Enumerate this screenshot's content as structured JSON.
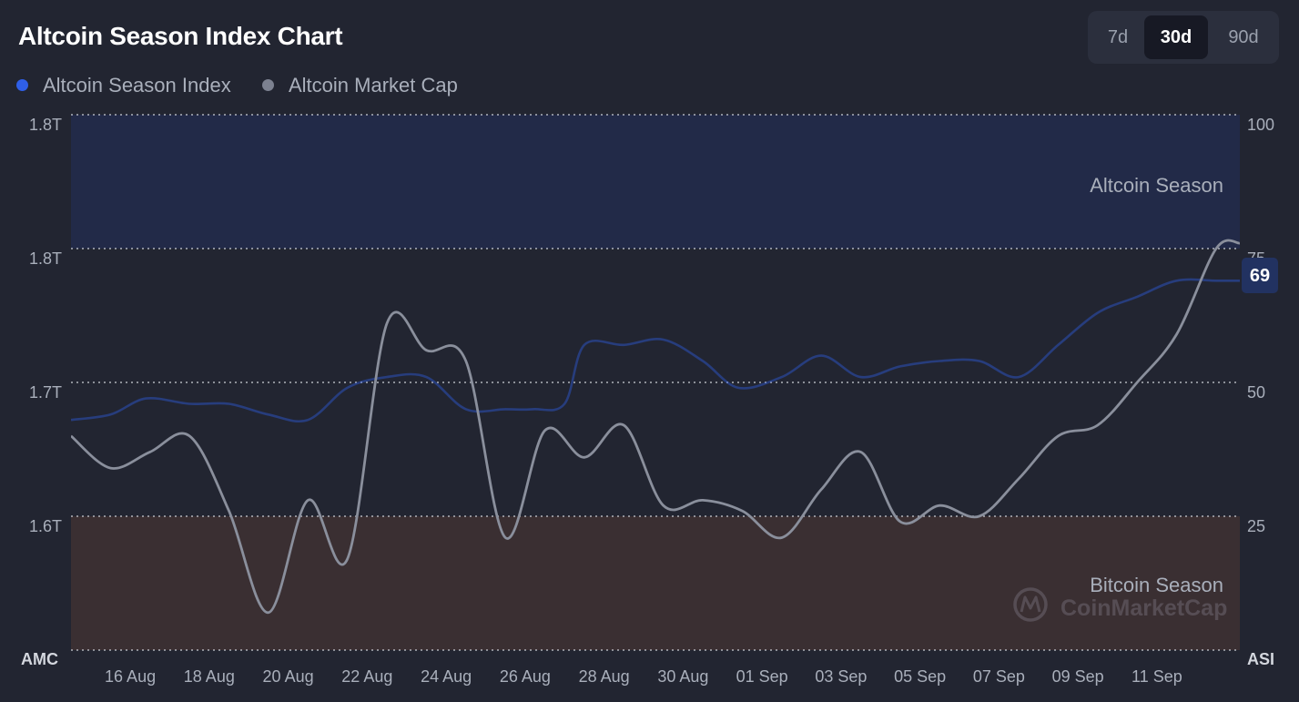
{
  "title": "Altcoin Season Index Chart",
  "range_buttons": [
    {
      "label": "7d",
      "active": false
    },
    {
      "label": "30d",
      "active": true
    },
    {
      "label": "90d",
      "active": false
    }
  ],
  "legend": [
    {
      "label": "Altcoin Season Index",
      "color": "#2f5fe8"
    },
    {
      "label": "Altcoin Market Cap",
      "color": "#7c8190"
    }
  ],
  "zones": {
    "altcoin_season_label": "Altcoin Season",
    "bitcoin_season_label": "Bitcoin Season",
    "altcoin_zone_color": "#222a48",
    "bitcoin_zone_color": "#3a2f32"
  },
  "axes": {
    "left_title": "AMC",
    "right_title": "ASI",
    "left_ticks": [
      "1.8T",
      "1.8T",
      "1.7T",
      "1.6T"
    ],
    "right_ticks": [
      "100",
      "75",
      "50",
      "25"
    ]
  },
  "current_value_badge": "69",
  "watermark": "CoinMarketCap",
  "chart_data": {
    "type": "line",
    "x_labels": [
      "16 Aug",
      "18 Aug",
      "20 Aug",
      "22 Aug",
      "24 Aug",
      "26 Aug",
      "28 Aug",
      "30 Aug",
      "01 Sep",
      "03 Sep",
      "05 Sep",
      "07 Sep",
      "09 Sep",
      "11 Sep"
    ],
    "x_range": [
      0,
      29.6
    ],
    "label_positions": [
      1.5,
      3.5,
      5.5,
      7.5,
      9.5,
      11.5,
      13.5,
      15.5,
      17.5,
      19.5,
      21.5,
      23.5,
      25.5,
      27.5
    ],
    "right_axis": {
      "label": "ASI",
      "range": [
        0,
        100
      ],
      "ticks": [
        100,
        75,
        50,
        25
      ]
    },
    "left_axis": {
      "label": "AMC",
      "ticks_labels": [
        "1.8T",
        "1.8T",
        "1.7T",
        "1.6T"
      ]
    },
    "zones": [
      {
        "name": "Altcoin Season",
        "from": 75,
        "to": 100
      },
      {
        "name": "Bitcoin Season",
        "from": 0,
        "to": 25
      }
    ],
    "series": [
      {
        "name": "Altcoin Season Index",
        "axis": "right",
        "color": "#2f5fe8",
        "x": [
          0,
          1,
          1.9,
          3,
          4,
          5,
          6,
          7,
          8,
          9,
          10,
          11,
          11.7,
          12.5,
          13,
          14,
          15,
          16,
          16.9,
          18,
          19,
          20,
          21,
          22,
          23,
          24,
          25,
          26,
          27,
          28,
          29,
          29.6
        ],
        "y": [
          43,
          44,
          47,
          46,
          46,
          44,
          43,
          49,
          51,
          51,
          45,
          45,
          45,
          46,
          57,
          57,
          58,
          54,
          49,
          51,
          55,
          51,
          53,
          54,
          54,
          51,
          57,
          63,
          66,
          69,
          69,
          69
        ]
      },
      {
        "name": "Altcoin Market Cap",
        "axis": "left",
        "color": "#8a8f9c",
        "y_scale": "right-axis equivalent (0-100)",
        "x": [
          0,
          1,
          2,
          3,
          4,
          5,
          6,
          7,
          8,
          9,
          10,
          11,
          12,
          13,
          14,
          15,
          16,
          17,
          18,
          19,
          20,
          21,
          22,
          23,
          24,
          25,
          26,
          27,
          28,
          29,
          29.6
        ],
        "y": [
          40,
          34,
          37,
          40,
          26,
          7,
          28,
          17,
          61,
          56,
          54,
          21,
          41,
          36,
          42,
          27,
          28,
          26,
          21,
          30,
          37,
          24,
          27,
          25,
          32,
          40,
          42,
          50,
          59,
          75,
          76
        ]
      }
    ]
  }
}
